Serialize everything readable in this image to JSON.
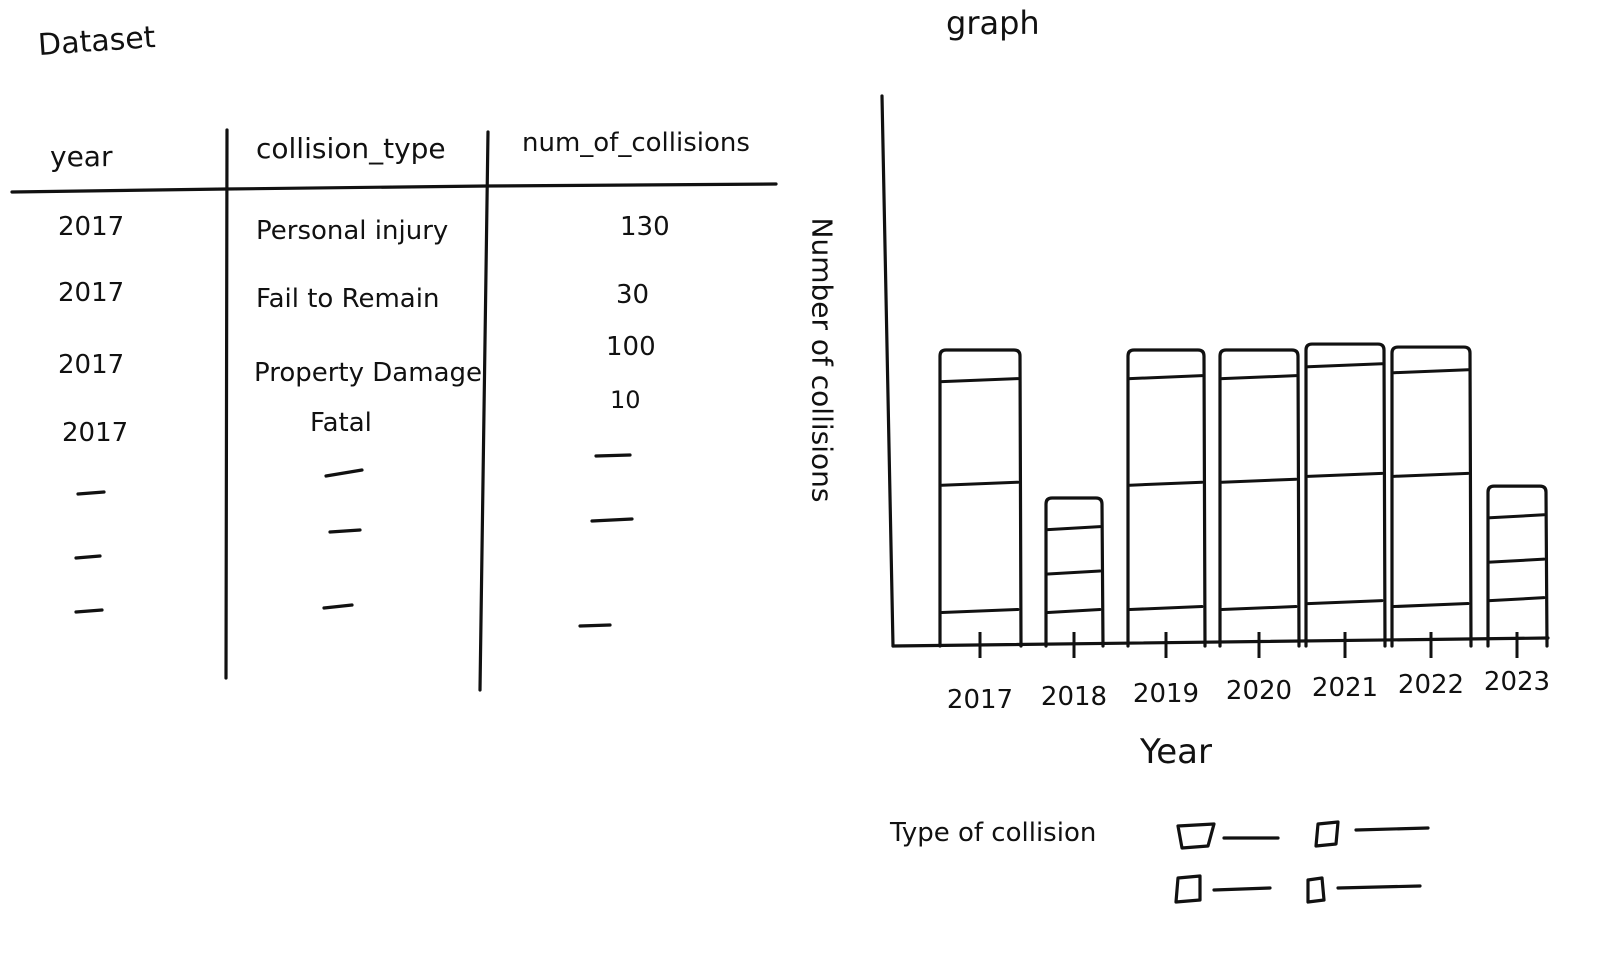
{
  "dataset": {
    "title": "Dataset",
    "columns": [
      "year",
      "collision_type",
      "num_of_collisions"
    ],
    "rows": [
      [
        "2017",
        "Personal injury",
        "130"
      ],
      [
        "2017",
        "Fail to Remain",
        "30"
      ],
      [
        "2017",
        "Property Damage",
        "100"
      ],
      [
        "2017",
        "Fatal",
        "10"
      ]
    ]
  },
  "graph": {
    "title": "graph",
    "ylabel": "Number of collisions",
    "xlabel": "Year",
    "legend_title": "Type of collision"
  },
  "chart_data": {
    "type": "bar",
    "categories": [
      "2017",
      "2018",
      "2019",
      "2020",
      "2021",
      "2022",
      "2023"
    ],
    "series": [
      {
        "values": [
          0.12,
          0.12,
          0.13,
          0.13,
          0.15,
          0.14,
          0.16
        ]
      },
      {
        "values": [
          0.55,
          0.25,
          0.55,
          0.56,
          0.58,
          0.58,
          0.29
        ]
      },
      {
        "values": [
          0.9,
          0.4,
          0.91,
          0.91,
          0.95,
          0.93,
          0.44
        ]
      },
      {
        "values": [
          1.0,
          0.5,
          1.0,
          1.0,
          1.02,
          1.01,
          0.54
        ]
      }
    ],
    "stacked": true,
    "title": "graph",
    "xlabel": "Year",
    "ylabel": "Number of collisions",
    "legend": "bottom",
    "grid": false
  }
}
